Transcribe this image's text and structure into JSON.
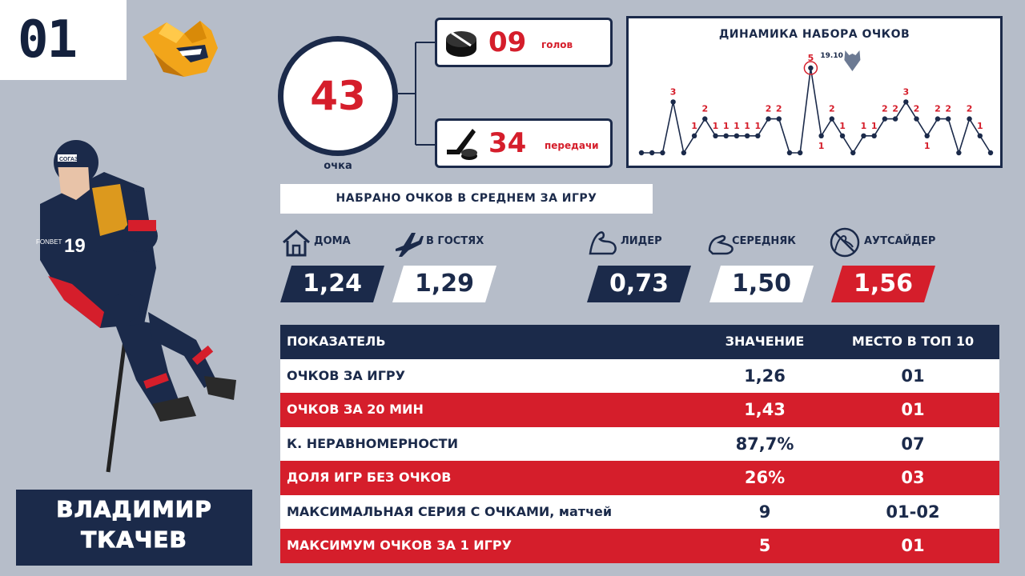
{
  "rank": "01",
  "player": {
    "first_name": "ВЛАДИМИР",
    "last_name": "ТКАЧЕВ",
    "jersey_number": "19",
    "jersey_sponsor": "СОГАЗ",
    "jersey_sponsor2": "FONBET"
  },
  "totals": {
    "points": "43",
    "points_label": "очка",
    "goals": "09",
    "goals_label": "голов",
    "assists": "34",
    "assists_label": "передачи"
  },
  "chart_data": {
    "type": "line",
    "title": "ДИНАМИКА НАБОРА ОЧКОВ",
    "values": [
      0,
      0,
      0,
      3,
      0,
      1,
      2,
      1,
      1,
      1,
      1,
      1,
      2,
      2,
      0,
      0,
      5,
      1,
      2,
      1,
      0,
      1,
      1,
      2,
      2,
      3,
      2,
      1,
      2,
      2,
      0,
      2,
      1,
      0
    ],
    "highlight": {
      "index": 16,
      "value": 5,
      "date": "19.10"
    },
    "ylim": [
      0,
      5
    ]
  },
  "average": {
    "header": "НАБРАНО ОЧКОВ В СРЕДНЕМ ЗА ИГРУ",
    "home_label": "ДОМА",
    "home_value": "1,24",
    "away_label": "В ГОСТЯХ",
    "away_value": "1,29",
    "leader_label": "ЛИДЕР",
    "leader_value": "0,73",
    "middle_label": "СЕРЕДНЯК",
    "middle_value": "1,50",
    "outsider_label": "АУТСАЙДЕР",
    "outsider_value": "1,56"
  },
  "table": {
    "headers": [
      "ПОКАЗАТЕЛЬ",
      "ЗНАЧЕНИЕ",
      "МЕСТО В ТОП 10"
    ],
    "rows": [
      [
        "ОЧКОВ ЗА ИГРУ",
        "1,26",
        "01"
      ],
      [
        "ОЧКОВ ЗА 20 МИН",
        "1,43",
        "01"
      ],
      [
        "К. НЕРАВНОМЕРНОСТИ",
        "87,7%",
        "07"
      ],
      [
        "ДОЛЯ ИГР БЕЗ ОЧКОВ",
        "26%",
        "03"
      ],
      [
        "МАКСИМАЛЬНАЯ СЕРИЯ С ОЧКАМИ, матчей",
        "9",
        "01-02"
      ],
      [
        "МАКСИМУМ ОЧКОВ ЗА 1 ИГРУ",
        "5",
        "01"
      ]
    ]
  },
  "colors": {
    "navy": "#1b2a4a",
    "red": "#d51e2b",
    "background": "#b6bdc9",
    "logo_orange": "#f2a51a"
  },
  "icons": [
    "team-logo-icon",
    "puck-icon",
    "stick-puck-icon",
    "house-icon",
    "airplane-icon",
    "bicep-icon",
    "arm-icon",
    "no-bicep-icon",
    "opponent-logo-icon"
  ]
}
